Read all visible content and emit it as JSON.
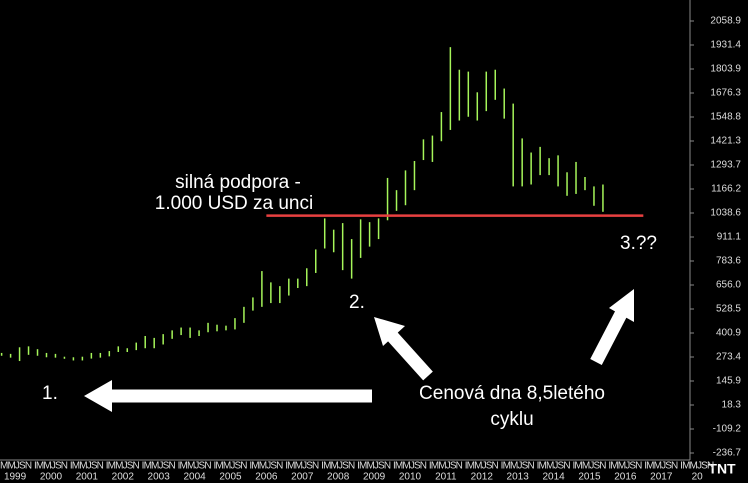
{
  "chart_data": {
    "type": "range-bar",
    "xlim": [
      1999.08,
      2018.3
    ],
    "ylim": [
      -273.9,
      2170.5
    ],
    "yticks": [
      2058.9,
      1931.4,
      1803.9,
      1676.3,
      1548.8,
      1421.3,
      1293.7,
      1166.2,
      1038.6,
      911.1,
      783.6,
      {
        "value": 656,
        "label": "656.0"
      },
      528.5,
      400.9,
      273.4,
      145.9,
      18.3,
      -109.2,
      -236.7
    ],
    "year_labels": [
      "1999",
      "2000",
      "2001",
      "2002",
      "2003",
      "2004",
      "2005",
      "2006",
      "2007",
      "2008",
      "2009",
      "2010",
      "2011",
      "2012",
      "2013",
      "2014",
      "2015",
      "2016",
      "2017",
      "20"
    ],
    "month_row": "IMMJSN",
    "logo": "TNT",
    "series": [
      {
        "color": "#a6f55a",
        "x": [
          1999.125,
          1999.375,
          1999.625,
          1999.875,
          2000.125,
          2000.375,
          2000.625,
          2000.875,
          2001.125,
          2001.375,
          2001.625,
          2001.875,
          2002.125,
          2002.375,
          2002.625,
          2002.875,
          2003.125,
          2003.375,
          2003.625,
          2003.875,
          2004.125,
          2004.375,
          2004.625,
          2004.875,
          2005.125,
          2005.375,
          2005.625,
          2005.875,
          2006.125,
          2006.375,
          2006.625,
          2006.875,
          2007.125,
          2007.375,
          2007.625,
          2007.875,
          2008.125,
          2008.375,
          2008.625,
          2008.875,
          2009.125,
          2009.375,
          2009.625,
          2009.875,
          2010.125,
          2010.375,
          2010.625,
          2010.875,
          2011.125,
          2011.375,
          2011.625,
          2011.875,
          2012.125,
          2012.375,
          2012.625,
          2012.875,
          2013.125,
          2013.375,
          2013.625,
          2013.875,
          2014.125,
          2014.375,
          2014.625,
          2014.875,
          2015.125,
          2015.375,
          2015.625,
          2015.875
        ],
        "high": [
          295,
          290,
          325,
          330,
          315,
          295,
          290,
          275,
          272,
          275,
          295,
          295,
          305,
          330,
          320,
          350,
          385,
          375,
          395,
          415,
          430,
          430,
          415,
          455,
          445,
          440,
          480,
          540,
          590,
          730,
          670,
          650,
          690,
          690,
          745,
          845,
          1010,
          950,
          985,
          900,
          1005,
          990,
          1010,
          1225,
          1160,
          1265,
          1315,
          1430,
          1450,
          1575,
          1920,
          1800,
          1790,
          1680,
          1790,
          1800,
          1700,
          1620,
          1435,
          1360,
          1390,
          1330,
          1345,
          1255,
          1310,
          1230,
          1180,
          1190
        ],
        "low": [
          280,
          270,
          252,
          285,
          280,
          272,
          270,
          264,
          255,
          255,
          265,
          270,
          277,
          300,
          300,
          310,
          320,
          320,
          340,
          370,
          390,
          375,
          385,
          405,
          410,
          415,
          420,
          455,
          520,
          540,
          560,
          560,
          600,
          640,
          650,
          720,
          850,
          830,
          735,
          690,
          800,
          860,
          900,
          1000,
          1050,
          1080,
          1160,
          1320,
          1310,
          1420,
          1480,
          1530,
          1550,
          1530,
          1580,
          1640,
          1540,
          1180,
          1180,
          1190,
          1240,
          1240,
          1180,
          1130,
          1140,
          1160,
          1077,
          1045
        ]
      }
    ],
    "support_line": {
      "value": 1025,
      "x": [
        2006.5,
        2017.0
      ],
      "color": "#e84040"
    },
    "annotations": [
      "silná podpora -",
      "1.000 USD za unci",
      "1.",
      "2.",
      "3.??",
      "Cenová dna 8,5letého",
      "cyklu"
    ]
  }
}
